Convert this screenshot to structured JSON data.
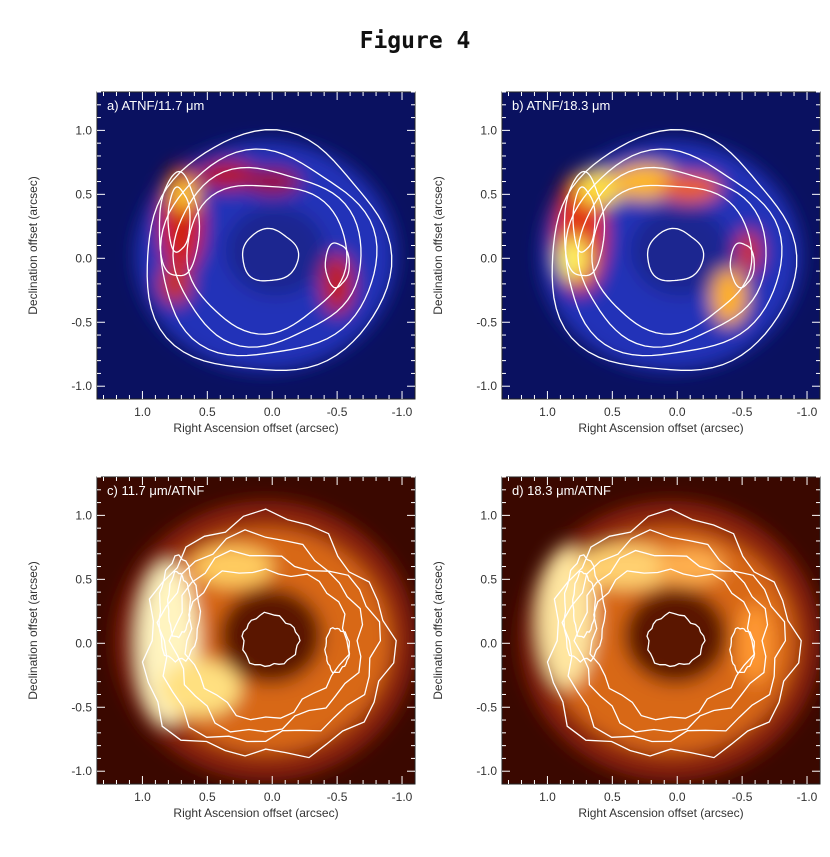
{
  "figure": {
    "title": "Figure 4"
  },
  "panels": [
    {
      "id": "a",
      "label": "a) ATNF/11.7 μm",
      "colormap": "blue-red",
      "contour_style": "smooth"
    },
    {
      "id": "b",
      "label": "b) ATNF/18.3 μm",
      "colormap": "blue-red",
      "contour_style": "smooth"
    },
    {
      "id": "c",
      "label": "c) 11.7 μm/ATNF",
      "colormap": "heat",
      "contour_style": "jagged"
    },
    {
      "id": "d",
      "label": "d) 18.3 μm/ATNF",
      "colormap": "heat",
      "contour_style": "jagged"
    }
  ],
  "axes": {
    "xlabel": "Right Ascension offset (arcsec)",
    "ylabel": "Declination offset (arcsec)",
    "xlim": [
      1.35,
      -1.1
    ],
    "ylim": [
      -1.1,
      1.3
    ],
    "xticks": [
      "1.0",
      "0.5",
      "0.0",
      "-0.5",
      "-1.0"
    ],
    "yticks": [
      "-1.0",
      "-0.5",
      "0.0",
      "0.5",
      "1.0"
    ]
  },
  "colors": {
    "contour": "#ffffff",
    "blue_bg": "#0a1160",
    "heat_bg": "#3a0800"
  }
}
